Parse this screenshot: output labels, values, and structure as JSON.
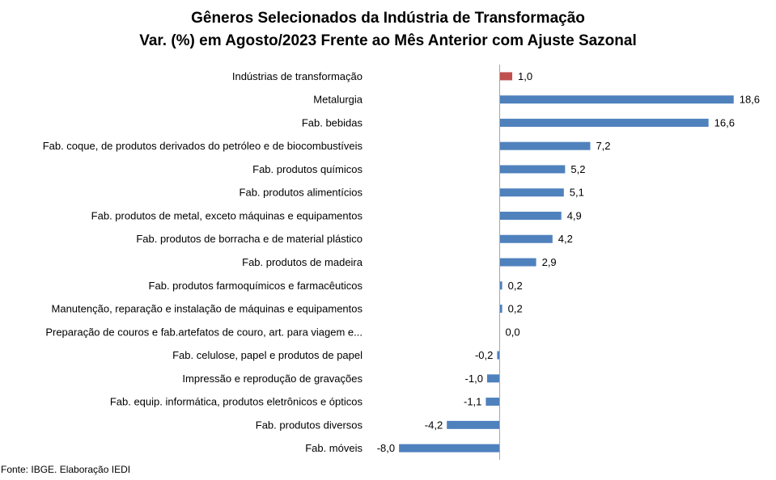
{
  "chart_data": {
    "type": "bar",
    "orientation": "horizontal",
    "title": "Gêneros Selecionados da Indústria de Transformação",
    "subtitle": "Var. (%) em Agosto/2023 Frente ao Mês Anterior com Ajuste Sazonal",
    "categories": [
      "Indústrias de transformação",
      "Metalurgia",
      "Fab. bebidas",
      "Fab. coque, de produtos derivados do petróleo e de biocombustíveis",
      "Fab. produtos químicos",
      "Fab. produtos alimentícios",
      "Fab. produtos de metal, exceto máquinas e equipamentos",
      "Fab. produtos de borracha e de material plástico",
      "Fab. produtos de madeira",
      "Fab. produtos farmoquímicos e farmacêuticos",
      "Manutenção, reparação e instalação de máquinas e equipamentos",
      "Preparação de couros e fab.artefatos de couro, art. para viagem e...",
      "Fab. celulose, papel e produtos de papel",
      "Impressão e reprodução de gravações",
      "Fab. equip. informática, produtos eletrônicos e ópticos",
      "Fab. produtos diversos",
      "Fab. móveis"
    ],
    "values": [
      1.0,
      18.6,
      16.6,
      7.2,
      5.2,
      5.1,
      4.9,
      4.2,
      2.9,
      0.2,
      0.2,
      0.0,
      -0.2,
      -1.0,
      -1.1,
      -4.2,
      -8.0
    ],
    "value_labels": [
      "1,0",
      "18,6",
      "16,6",
      "7,2",
      "5,2",
      "5,1",
      "4,9",
      "4,2",
      "2,9",
      "0,2",
      "0,2",
      "0,0",
      "-0,2",
      "-1,0",
      "-1,1",
      "-4,2",
      "-8,0"
    ],
    "xlim": [
      -8.0,
      19.0
    ],
    "xlabel": "",
    "ylabel": "",
    "grid": false,
    "legend": "none",
    "colors": {
      "highlight": "#C0504D",
      "bars": "#4F81BD",
      "axis": "#A6A6A6"
    }
  },
  "footer": {
    "source": "Fonte: IBGE. Elaboração IEDI"
  }
}
